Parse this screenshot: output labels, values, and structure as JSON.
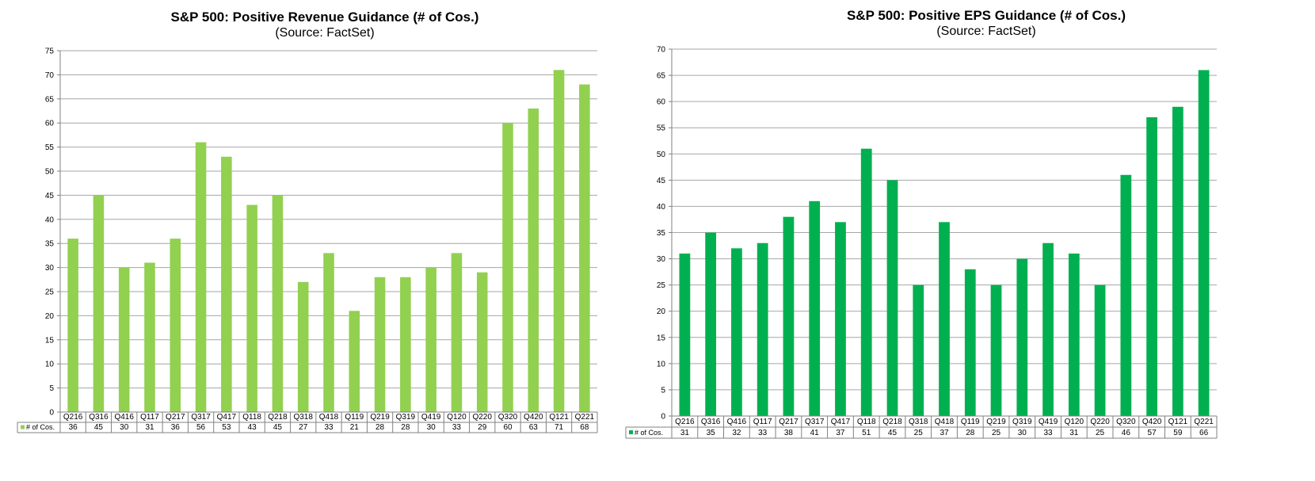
{
  "colors": {
    "revenue_bar": "#92d050",
    "eps_bar": "#00b050",
    "gridline": "#a6a6a6",
    "axis": "#808080"
  },
  "chart_data": [
    {
      "type": "bar",
      "title": "S&P 500: Positive Revenue Guidance (# of Cos.)",
      "subtitle": "(Source: FactSet)",
      "categories": [
        "Q216",
        "Q316",
        "Q416",
        "Q117",
        "Q217",
        "Q317",
        "Q417",
        "Q118",
        "Q218",
        "Q318",
        "Q418",
        "Q119",
        "Q219",
        "Q319",
        "Q419",
        "Q120",
        "Q220",
        "Q320",
        "Q420",
        "Q121",
        "Q221"
      ],
      "series": [
        {
          "name": "# of Cos.",
          "values": [
            36,
            45,
            30,
            31,
            36,
            56,
            53,
            43,
            45,
            27,
            33,
            21,
            28,
            28,
            30,
            33,
            29,
            60,
            63,
            71,
            68
          ]
        }
      ],
      "ylim": [
        0,
        75
      ],
      "ystep": 5,
      "grid": true,
      "legend": "data-table"
    },
    {
      "type": "bar",
      "title": "S&P 500: Positive EPS Guidance (# of Cos.)",
      "subtitle": "(Source: FactSet)",
      "categories": [
        "Q216",
        "Q316",
        "Q416",
        "Q117",
        "Q217",
        "Q317",
        "Q417",
        "Q118",
        "Q218",
        "Q318",
        "Q418",
        "Q119",
        "Q219",
        "Q319",
        "Q419",
        "Q120",
        "Q220",
        "Q320",
        "Q420",
        "Q121",
        "Q221"
      ],
      "series": [
        {
          "name": "# of Cos.",
          "values": [
            31,
            35,
            32,
            33,
            38,
            41,
            37,
            51,
            45,
            25,
            37,
            28,
            25,
            30,
            33,
            31,
            25,
            46,
            57,
            59,
            66
          ]
        }
      ],
      "ylim": [
        0,
        70
      ],
      "ystep": 5,
      "grid": true,
      "legend": "data-table"
    }
  ]
}
